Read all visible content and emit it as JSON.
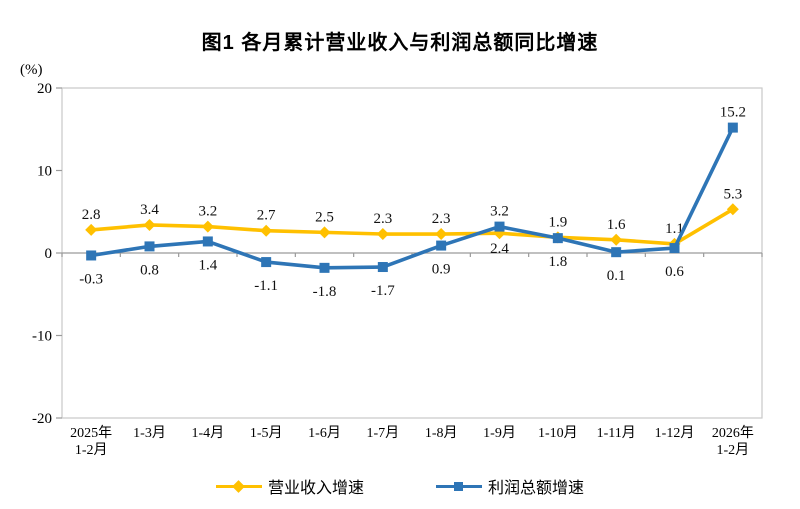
{
  "chart_data": {
    "type": "line",
    "title": "图1 各月累计营业收入与利润总额同比增速",
    "y_unit": "(%)",
    "ylim": [
      -20,
      20
    ],
    "y_ticks": [
      20,
      10,
      0,
      -10,
      -20
    ],
    "grid": false,
    "legend_position": "bottom",
    "colors": {
      "axis": "#9a9a9a",
      "plot_border": "#c9c9c9",
      "text": "#000000"
    },
    "categories": [
      "2025年\n1-2月",
      "1-3月",
      "1-4月",
      "1-5月",
      "1-6月",
      "1-7月",
      "1-8月",
      "1-9月",
      "1-10月",
      "1-11月",
      "1-12月",
      "2026年\n1-2月"
    ],
    "series": [
      {
        "name": "营业收入增速",
        "color": "#FFC000",
        "marker": "diamond",
        "values": [
          2.8,
          3.4,
          3.2,
          2.7,
          2.5,
          2.3,
          2.3,
          2.4,
          1.9,
          1.6,
          1.1,
          5.3
        ],
        "label_side": [
          "above",
          "above",
          "above",
          "above",
          "above",
          "above",
          "above",
          "below",
          "above",
          "above",
          "above",
          "above"
        ]
      },
      {
        "name": "利润总额增速",
        "color": "#2E75B6",
        "marker": "square",
        "values": [
          -0.3,
          0.8,
          1.4,
          -1.1,
          -1.8,
          -1.7,
          0.9,
          3.2,
          1.8,
          0.1,
          0.6,
          15.2
        ],
        "label_side": [
          "below",
          "below",
          "below",
          "below",
          "below",
          "below",
          "below",
          "above",
          "below",
          "below",
          "below",
          "above"
        ]
      }
    ]
  }
}
